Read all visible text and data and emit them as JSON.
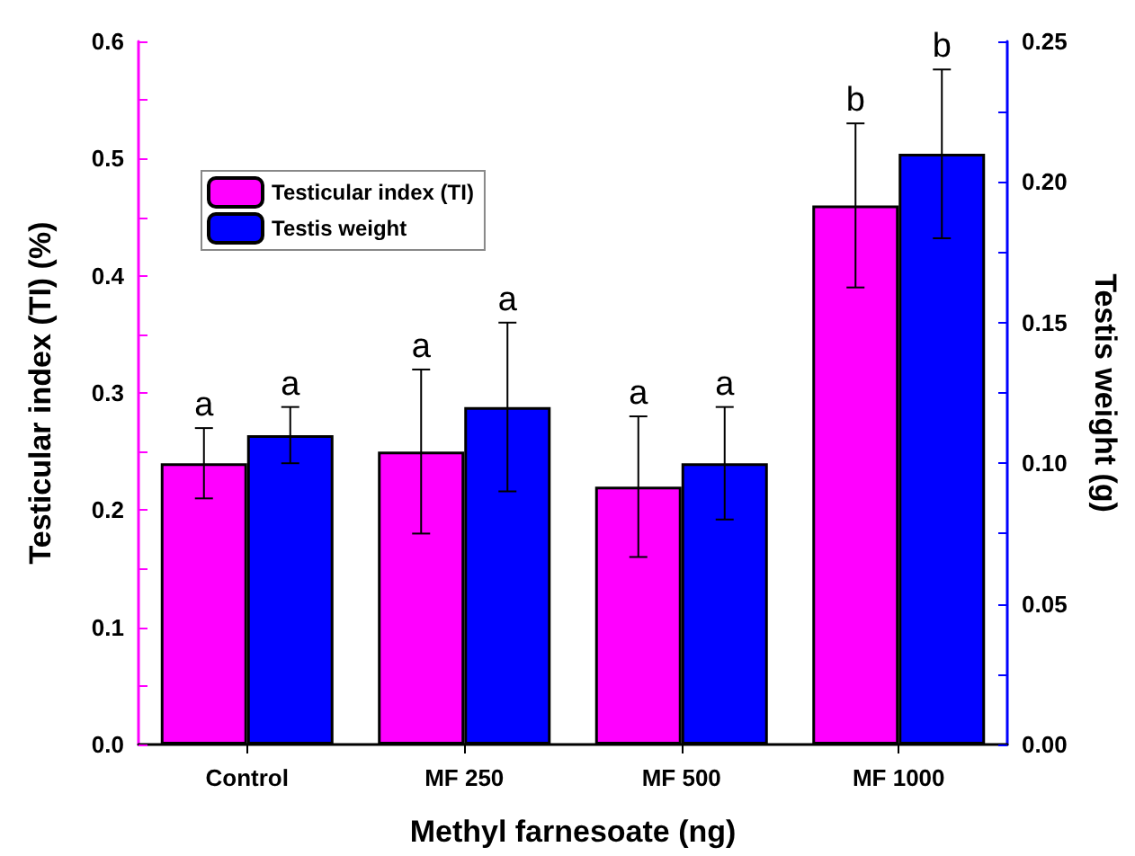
{
  "chart_data": {
    "type": "bar",
    "xlabel": "Methyl farnesoate (ng)",
    "ylabel": "Testicular index (TI) (%)",
    "y2label": "Testis weight (g)",
    "categories": [
      "Control",
      "MF 250",
      "MF 500",
      "MF 1000"
    ],
    "series": [
      {
        "name": "Testicular index (TI)",
        "color": "#ff00ff",
        "values": [
          0.24,
          0.25,
          0.22,
          0.46
        ],
        "errors": [
          [
            0.21,
            0.27
          ],
          [
            0.18,
            0.32
          ],
          [
            0.16,
            0.28
          ],
          [
            0.39,
            0.53
          ]
        ]
      },
      {
        "name": "Testis weight",
        "color": "#0000ff",
        "axis": "y2",
        "values": [
          0.11,
          0.12,
          0.1,
          0.21
        ],
        "errors": [
          [
            0.1,
            0.12
          ],
          [
            0.09,
            0.15
          ],
          [
            0.08,
            0.12
          ],
          [
            0.18,
            0.24
          ]
        ]
      }
    ],
    "ylim": [
      0,
      0.6
    ],
    "yticks": [
      {
        "value": 0,
        "label": "0.0"
      },
      {
        "value": 0.05,
        "label": null
      },
      {
        "value": 0.1,
        "label": "0.1"
      },
      {
        "value": 0.15,
        "label": null
      },
      {
        "value": 0.2,
        "label": "0.2"
      },
      {
        "value": 0.25,
        "label": null
      },
      {
        "value": 0.3,
        "label": "0.3"
      },
      {
        "value": 0.35,
        "label": null
      },
      {
        "value": 0.4,
        "label": "0.4"
      },
      {
        "value": 0.45,
        "label": null
      },
      {
        "value": 0.5,
        "label": "0.5"
      },
      {
        "value": 0.55,
        "label": null
      },
      {
        "value": 0.6,
        "label": "0.6"
      }
    ],
    "y2lim": [
      0,
      0.25
    ],
    "y2ticks": [
      {
        "value": 0,
        "label": "0.00"
      },
      {
        "value": 0.025,
        "label": null
      },
      {
        "value": 0.05,
        "label": "0.05"
      },
      {
        "value": 0.075,
        "label": null
      },
      {
        "value": 0.1,
        "label": "0.10"
      },
      {
        "value": 0.125,
        "label": null
      },
      {
        "value": 0.15,
        "label": "0.15"
      },
      {
        "value": 0.175,
        "label": null
      },
      {
        "value": 0.2,
        "label": "0.20"
      },
      {
        "value": 0.225,
        "label": null
      },
      {
        "value": 0.25,
        "label": "0.25"
      }
    ],
    "annotations": [
      "a",
      "a",
      "a",
      "a",
      "a",
      "a",
      "b",
      "b"
    ],
    "legend": "top left",
    "grid": false
  }
}
